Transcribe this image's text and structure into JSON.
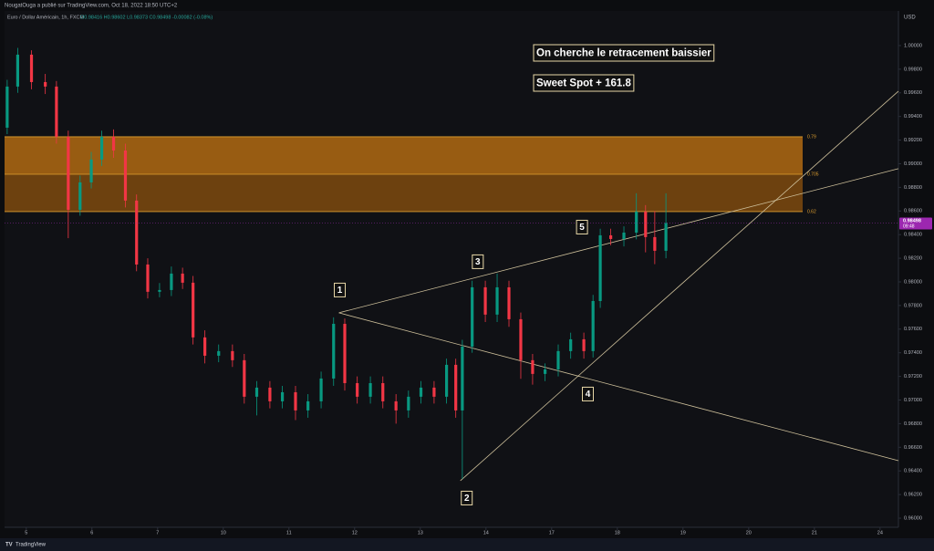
{
  "header": {
    "publisher": "NougatOuga a publié sur TradingView.com, Oct 18, 2022 18:50 UTC+2",
    "symbol": "Euro / Dollar Américain, 1h, FXCM",
    "ohlc": "O0.98416 H0.98602 L0.98373 C0.98498 -0.00082 (-0.08%)"
  },
  "footer": {
    "brand": "TradingView"
  },
  "chart_data": {
    "type": "candlestick",
    "currency": "USD",
    "x": [
      -0.29,
      -0.13,
      0.08,
      0.29,
      0.46,
      0.64,
      0.82,
      0.99,
      1.15,
      1.33,
      1.51,
      1.68,
      1.85,
      2.03,
      2.21,
      2.38,
      2.54,
      2.72,
      2.93,
      3.14,
      3.32,
      3.51,
      3.71,
      3.9,
      4.1,
      4.29,
      4.49,
      4.68,
      4.85,
      5.04,
      5.24,
      5.43,
      5.63,
      5.82,
      6.01,
      6.21,
      6.4,
      6.54,
      6.64,
      6.79,
      6.99,
      7.17,
      7.35,
      7.53,
      7.71,
      7.9,
      8.1,
      8.29,
      8.49,
      8.63,
      8.74,
      8.9,
      9.1,
      9.29,
      9.43,
      9.57,
      9.74
    ],
    "open": [
      0.99305,
      0.99653,
      0.99923,
      0.99691,
      0.99653,
      0.99228,
      0.9861,
      0.98842,
      0.99035,
      0.99228,
      0.99112,
      0.98688,
      0.98147,
      0.97916,
      0.97931,
      0.9807,
      0.97993,
      0.9753,
      0.97375,
      0.97414,
      0.97337,
      0.97028,
      0.97105,
      0.96989,
      0.97066,
      0.96912,
      0.96989,
      0.97182,
      0.97645,
      0.97143,
      0.97028,
      0.97143,
      0.96989,
      0.96912,
      0.97028,
      0.97105,
      0.97028,
      0.97298,
      0.96912,
      0.97452,
      0.97954,
      0.97723,
      0.97954,
      0.97684,
      0.97337,
      0.97221,
      0.97259,
      0.97414,
      0.97514,
      0.97414,
      0.97838,
      0.98394,
      0.98363,
      0.98417,
      0.98595,
      0.98379,
      0.98263
    ],
    "high": [
      0.9971,
      0.9998,
      0.9996,
      0.9976,
      0.997,
      0.9928,
      0.989,
      0.991,
      0.9928,
      0.9929,
      0.9917,
      0.9874,
      0.982,
      0.9799,
      0.9813,
      0.9812,
      0.9805,
      0.9759,
      0.9747,
      0.9747,
      0.9739,
      0.9716,
      0.9716,
      0.9712,
      0.9712,
      0.9705,
      0.9724,
      0.977,
      0.9769,
      0.972,
      0.972,
      0.972,
      0.9705,
      0.9708,
      0.9716,
      0.9716,
      0.9735,
      0.9735,
      0.9751,
      0.9801,
      0.9801,
      0.9807,
      0.9801,
      0.9774,
      0.9739,
      0.9731,
      0.9747,
      0.9757,
      0.9757,
      0.9789,
      0.9845,
      0.9845,
      0.9847,
      0.9875,
      0.9865,
      0.986,
      0.9875
    ],
    "low": [
      0.9925,
      0.996,
      0.9963,
      0.9959,
      0.9917,
      0.9837,
      0.9856,
      0.9879,
      0.9898,
      0.9905,
      0.9863,
      0.9809,
      0.9786,
      0.9787,
      0.9788,
      0.9794,
      0.9747,
      0.9731,
      0.9732,
      0.9728,
      0.9697,
      0.9687,
      0.9693,
      0.9693,
      0.9683,
      0.9685,
      0.9693,
      0.9712,
      0.9708,
      0.9697,
      0.9697,
      0.9693,
      0.968,
      0.9685,
      0.9697,
      0.9697,
      0.9697,
      0.9685,
      0.96333,
      0.974,
      0.9766,
      0.9766,
      0.9762,
      0.9718,
      0.9713,
      0.9716,
      0.972,
      0.9735,
      0.9735,
      0.9736,
      0.9778,
      0.9831,
      0.983,
      0.9836,
      0.9825,
      0.9815,
      0.982
    ],
    "close": [
      0.99653,
      0.99923,
      0.99691,
      0.99653,
      0.99228,
      0.9861,
      0.98842,
      0.99035,
      0.99228,
      0.99112,
      0.98688,
      0.98147,
      0.97916,
      0.97931,
      0.9807,
      0.97993,
      0.9753,
      0.97375,
      0.97414,
      0.97337,
      0.97028,
      0.97105,
      0.96989,
      0.97066,
      0.96912,
      0.96989,
      0.97182,
      0.97645,
      0.97143,
      0.97028,
      0.97143,
      0.96989,
      0.96912,
      0.97028,
      0.97105,
      0.97028,
      0.97298,
      0.96912,
      0.97452,
      0.97954,
      0.97723,
      0.97954,
      0.97684,
      0.97337,
      0.97221,
      0.97259,
      0.97414,
      0.97514,
      0.97414,
      0.97838,
      0.98394,
      0.98363,
      0.98417,
      0.98595,
      0.98379,
      0.98263,
      0.98498
    ],
    "up_color": "#089981",
    "down_color": "#f23645",
    "last_price": {
      "value": 0.98498,
      "label": "0.98498",
      "countdown": "09:48",
      "color": "#9c27b0"
    },
    "xlim": [
      -0.33,
      13.28
    ],
    "xticks": [
      {
        "value": 0,
        "label": "5"
      },
      {
        "value": 1,
        "label": "6"
      },
      {
        "value": 2,
        "label": "7"
      },
      {
        "value": 3,
        "label": "10"
      },
      {
        "value": 4,
        "label": "11"
      },
      {
        "value": 5,
        "label": "12"
      },
      {
        "value": 6,
        "label": "13"
      },
      {
        "value": 7,
        "label": "14"
      },
      {
        "value": 8,
        "label": "17"
      },
      {
        "value": 9,
        "label": "18"
      },
      {
        "value": 10,
        "label": "19"
      },
      {
        "value": 11,
        "label": "20"
      },
      {
        "value": 12,
        "label": "21"
      },
      {
        "value": 13,
        "label": "24"
      }
    ],
    "ylim": [
      0.95923,
      1.00293
    ],
    "yticks": [
      {
        "value": 0.96,
        "label": "0.96000"
      },
      {
        "value": 0.962,
        "label": "0.96200"
      },
      {
        "value": 0.964,
        "label": "0.96400"
      },
      {
        "value": 0.966,
        "label": "0.96600"
      },
      {
        "value": 0.968,
        "label": "0.96800"
      },
      {
        "value": 0.97,
        "label": "0.97000"
      },
      {
        "value": 0.972,
        "label": "0.97200"
      },
      {
        "value": 0.974,
        "label": "0.97400"
      },
      {
        "value": 0.976,
        "label": "0.97600"
      },
      {
        "value": 0.978,
        "label": "0.97800"
      },
      {
        "value": 0.98,
        "label": "0.98000"
      },
      {
        "value": 0.982,
        "label": "0.98200"
      },
      {
        "value": 0.984,
        "label": "0.98400"
      },
      {
        "value": 0.986,
        "label": "0.98600"
      },
      {
        "value": 0.988,
        "label": "0.98800"
      },
      {
        "value": 0.99,
        "label": "0.99000"
      },
      {
        "value": 0.992,
        "label": "0.99200"
      },
      {
        "value": 0.994,
        "label": "0.99400"
      },
      {
        "value": 0.996,
        "label": "0.99600"
      },
      {
        "value": 0.998,
        "label": "0.99800"
      },
      {
        "value": 1.0,
        "label": "1.00000"
      }
    ],
    "fib_levels": {
      "ratios": [
        0.79,
        0.705,
        0.62
      ],
      "prices": [
        0.99228,
        0.98911,
        0.98595
      ],
      "colors": [
        "#b06a12",
        "#7e4a0e"
      ]
    },
    "trend_lines": [
      {
        "x": [
          4.76,
          13.28
        ],
        "y": [
          0.97738,
          0.96487
        ]
      },
      {
        "x": [
          4.76,
          13.28
        ],
        "y": [
          0.97738,
          0.98958
        ]
      },
      {
        "x": [
          6.61,
          13.28
        ],
        "y": [
          0.96317,
          0.99614
        ]
      }
    ],
    "wave_points": [
      {
        "label": "1",
        "x": 4.76,
        "y": 0.97738
      },
      {
        "label": "2",
        "x": 6.61,
        "y": 0.96317
      },
      {
        "label": "3",
        "x": 6.82,
        "y": 0.9807
      },
      {
        "label": "4",
        "x": 8.44,
        "y": 0.97236
      },
      {
        "label": "5",
        "x": 8.74,
        "y": 0.98394
      }
    ],
    "annotations": [
      "On cherche le retracement baissier",
      "Sweet Spot + 161.8"
    ]
  }
}
